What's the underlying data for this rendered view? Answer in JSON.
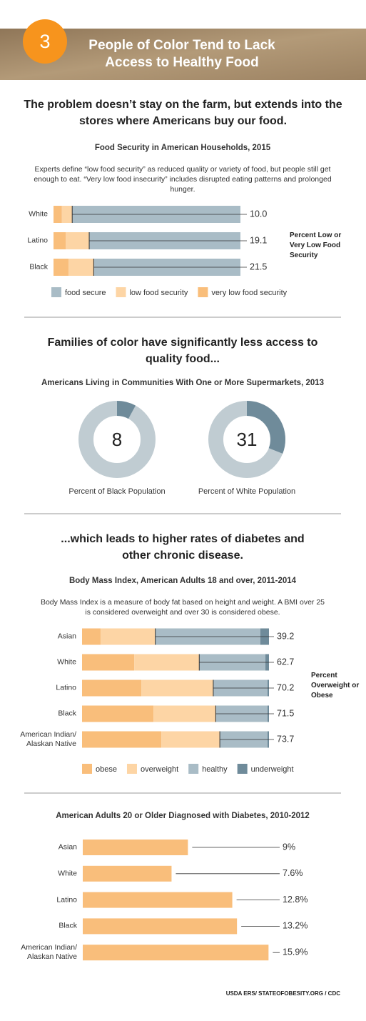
{
  "header": {
    "number": "3",
    "title": "People of Color Tend to Lack Access to Healthy Food"
  },
  "headlines": [
    "The problem doesn’t stay on the farm, but extends into the stores where Americans buy our food.",
    "Families of color have significantly less access to quality food...",
    "...which leads to higher rates of diabetes and other chronic disease."
  ],
  "chart_data": [
    {
      "type": "bar",
      "title": "Food Security in American Households, 2015",
      "subtitle": "Experts define “low food security”  as reduced quality or variety of food, but people still get enough to eat. “Very low food insecurity” includes disrupted eating patterns and prolonged hunger.",
      "categories": [
        "White",
        "Latino",
        "Black"
      ],
      "series": [
        {
          "name": "very low food security",
          "color": "#f9be7b",
          "values": [
            4.5,
            6.5,
            8.0
          ]
        },
        {
          "name": "low food security",
          "color": "#fdd5a5",
          "values": [
            5.5,
            12.6,
            13.5
          ]
        },
        {
          "name": "food secure",
          "color": "#a9bcc6",
          "values": [
            90.0,
            80.9,
            78.5
          ]
        }
      ],
      "legend_reversed": true,
      "totals": [
        10.0,
        19.1,
        21.5
      ],
      "totals_labels": [
        "10.0",
        "19.1",
        "21.5"
      ],
      "total_title": "Percent Low or Very Low Food Security",
      "xlim": [
        0,
        100
      ]
    },
    {
      "type": "donut",
      "title": "Americans Living in Communities With One or More Supermarkets, 2013",
      "categories": [
        "Percent of Black Population",
        "Percent of White Population"
      ],
      "values": [
        8,
        31
      ],
      "color": "#6f8b9a",
      "track_color": "#c0ccd2"
    },
    {
      "type": "bar",
      "title": "Body Mass Index, American Adults 18 and over, 2011-2014",
      "subtitle": "Body Mass Index is a measure of body fat based on height and weight. A BMI over 25 is considered overweight and over 30 is considered obese.",
      "categories": [
        "Asian",
        "White",
        "Latino",
        "Black",
        "American Indian/ Alaskan Native"
      ],
      "series": [
        {
          "name": "obese",
          "color": "#f9be7b",
          "values": [
            9.9,
            27.9,
            31.7,
            38.2,
            42.4
          ]
        },
        {
          "name": "overweight",
          "color": "#fdd5a5",
          "values": [
            29.3,
            34.8,
            38.5,
            33.3,
            31.3
          ]
        },
        {
          "name": "healthy",
          "color": "#a9bcc6",
          "values": [
            56.2,
            35.4,
            29.0,
            27.7,
            25.5
          ]
        },
        {
          "name": "underweight",
          "color": "#6f8b9a",
          "values": [
            4.6,
            1.9,
            0.8,
            0.8,
            0.8
          ]
        }
      ],
      "totals": [
        39.2,
        62.7,
        70.2,
        71.5,
        73.7
      ],
      "total_title": "Percent Overweight or Obese",
      "xlim": [
        0,
        100
      ]
    },
    {
      "type": "bar",
      "title": "American Adults 20 or Older Diagnosed  with Diabetes, 2010-2012",
      "categories": [
        "Asian",
        "White",
        "Latino",
        "Black",
        "American Indian/ Alaskan Native"
      ],
      "values": [
        9,
        7.6,
        12.8,
        13.2,
        15.9
      ],
      "value_labels": [
        "9%",
        "7.6%",
        "12.8%",
        "13.2%",
        "15.9%"
      ],
      "color": "#f9be7b",
      "xlim": [
        0,
        16
      ]
    }
  ],
  "source": "USDA ERS/ STATEOFOBESITY.ORG / CDC"
}
